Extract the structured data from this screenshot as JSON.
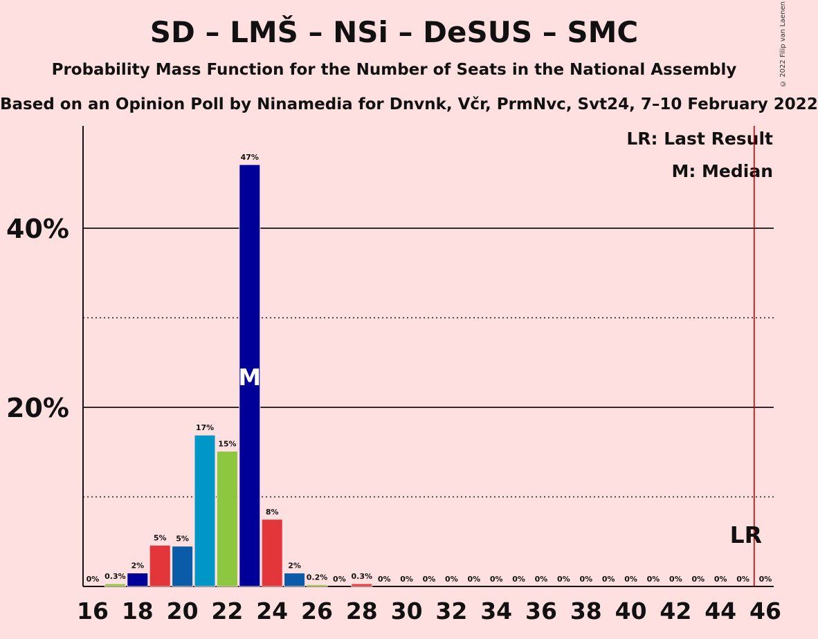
{
  "title": "SD – LMŠ – NSi – DeSUS – SMC",
  "subtitle": "Probability Mass Function for the Number of Seats in the National Assembly",
  "subtitle2": "Based on an Opinion Poll by Ninamedia for Dnvnk, Včr, PrmNvc, Svt24, 7–10 February 2022",
  "copyright": "© 2022 Filip van Laenen",
  "legend": {
    "last_result": "LR: Last Result",
    "median": "M: Median"
  },
  "colors": {
    "background": "#FFE0E0",
    "bar_palette": [
      "#0A5CA8",
      "#8DC63F",
      "#000099",
      "#E2363A",
      "#0A5CA8",
      "#0097C8",
      "#8DC63F",
      "#000099",
      "#E2363A"
    ],
    "last_result_line": "#CC0000"
  },
  "chart_data": {
    "type": "bar",
    "x": [
      16,
      17,
      18,
      19,
      20,
      21,
      22,
      23,
      24,
      25,
      26,
      27,
      28,
      29,
      30,
      31,
      32,
      33,
      34,
      35,
      36,
      37,
      38,
      39,
      40,
      41,
      42,
      43,
      44,
      45,
      46
    ],
    "values": [
      0,
      0.3,
      1.5,
      4.6,
      4.5,
      16.9,
      15.1,
      47.1,
      7.5,
      1.5,
      0.2,
      0,
      0.3,
      0,
      0,
      0,
      0,
      0,
      0,
      0,
      0,
      0,
      0,
      0,
      0,
      0,
      0,
      0,
      0,
      0,
      0
    ],
    "data_labels": [
      "0%",
      "0.3%",
      "2%",
      "5%",
      "5%",
      "17%",
      "15%",
      "47%",
      "8%",
      "2%",
      "0.2%",
      "0%",
      "0.3%",
      "0%",
      "0%",
      "0%",
      "0%",
      "0%",
      "0%",
      "0%",
      "0%",
      "0%",
      "0%",
      "0%",
      "0%",
      "0%",
      "0%",
      "0%",
      "0%",
      "0%",
      "0%"
    ],
    "x_tick_labels": [
      "16",
      "18",
      "20",
      "22",
      "24",
      "26",
      "28",
      "30",
      "32",
      "34",
      "36",
      "38",
      "40",
      "42",
      "44",
      "46"
    ],
    "y_tick_labels": [
      "20%",
      "40%"
    ],
    "ylim": [
      0,
      50
    ],
    "y_gridlines_solid": [
      20,
      40
    ],
    "y_gridlines_dotted": [
      10,
      30
    ],
    "median_seat": 23,
    "median_label": "M",
    "last_result_seat": 45.5,
    "last_result_label": "LR",
    "xlabel": "",
    "ylabel": ""
  }
}
